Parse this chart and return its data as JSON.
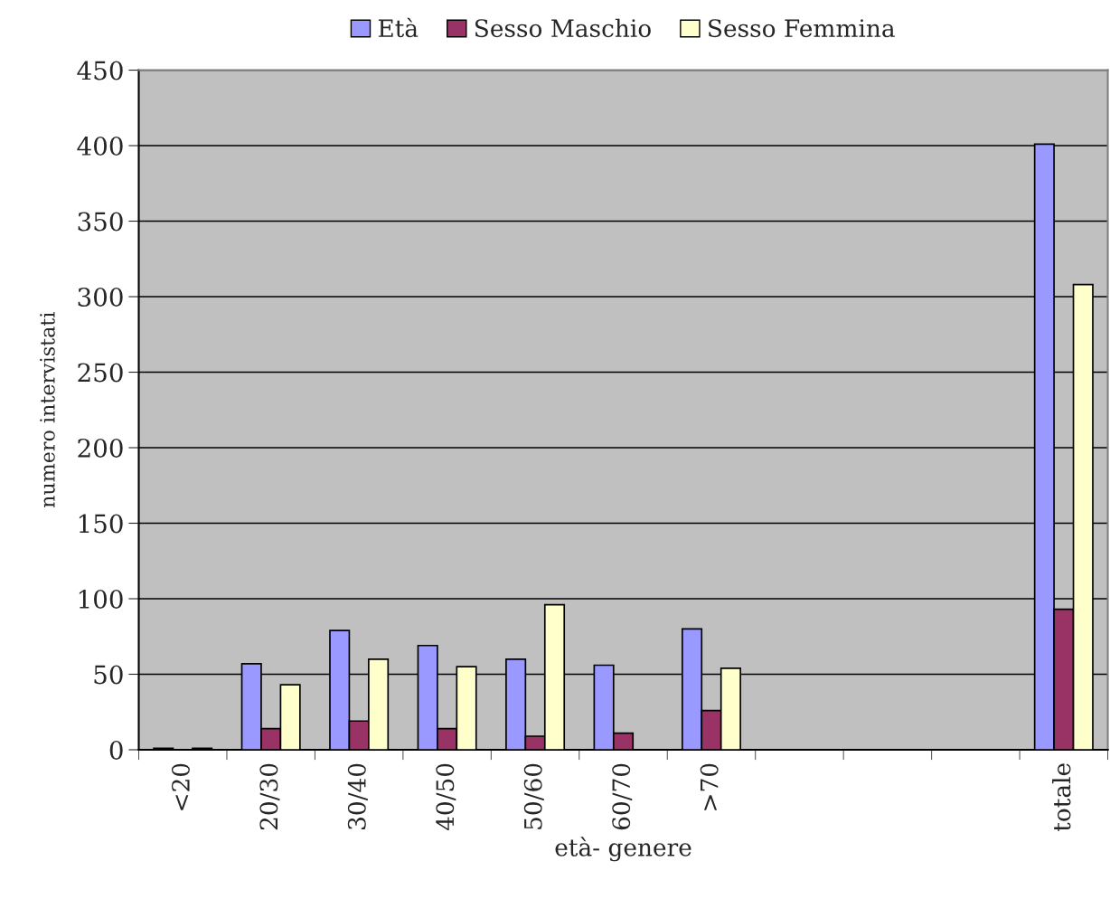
{
  "chart_data": {
    "type": "bar",
    "xlabel": "età- genere",
    "ylabel": "numero intervistati",
    "categories": [
      "<20",
      "20/30",
      "30/40",
      "40/50",
      "50/60",
      "60/70",
      ">70",
      null,
      null,
      null,
      "totale"
    ],
    "series": [
      {
        "name": "Età",
        "color": "#9999ff",
        "values": [
          1,
          57,
          79,
          69,
          60,
          56,
          80,
          null,
          null,
          null,
          401
        ]
      },
      {
        "name": "Sesso Maschio",
        "color": "#993366",
        "values": [
          null,
          14,
          19,
          14,
          9,
          11,
          26,
          null,
          null,
          null,
          93
        ]
      },
      {
        "name": "Sesso Femmina",
        "color": "#ffffcc",
        "values": [
          1,
          43,
          60,
          55,
          96,
          null,
          54,
          null,
          null,
          null,
          308
        ]
      }
    ],
    "ylim": [
      0,
      450
    ],
    "yticks": [
      0,
      50,
      100,
      150,
      200,
      250,
      300,
      350,
      400,
      450
    ],
    "grid": "y",
    "legend": "top"
  }
}
